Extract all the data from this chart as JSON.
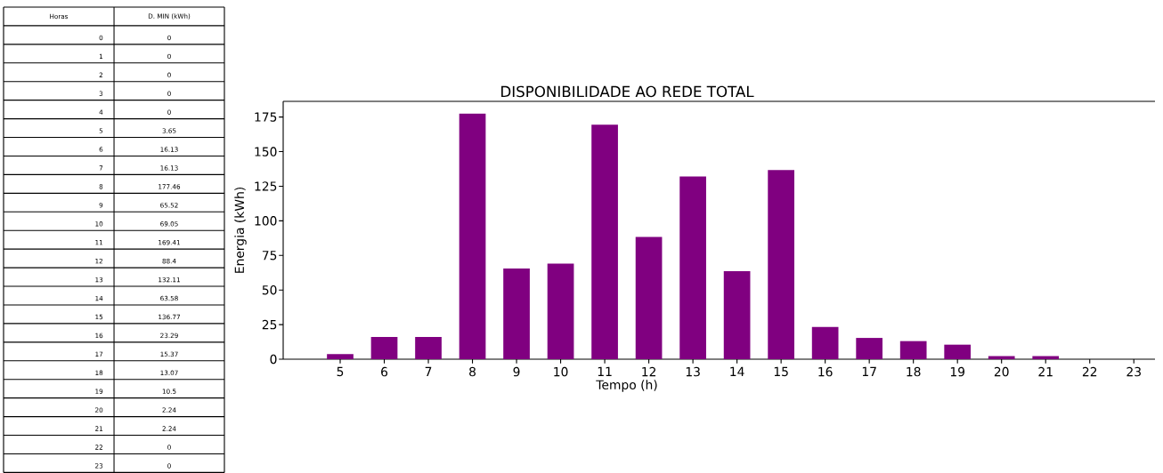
{
  "chart_data": [
    {
      "type": "heatmap",
      "ylabel": "Horas",
      "categories": [
        "D. MIN (kWh)"
      ],
      "y_categories": [
        "0",
        "1",
        "2",
        "3",
        "4",
        "5",
        "6",
        "7",
        "8",
        "9",
        "10",
        "11",
        "12",
        "13",
        "14",
        "15",
        "16",
        "17",
        "18",
        "19",
        "20",
        "21",
        "22",
        "23"
      ],
      "cells": [
        [
          0
        ],
        [
          0
        ],
        [
          0
        ],
        [
          0
        ],
        [
          0
        ],
        [
          3.65
        ],
        [
          16.13
        ],
        [
          16.13
        ],
        [
          177.46
        ],
        [
          65.52
        ],
        [
          69.05
        ],
        [
          169.41
        ],
        [
          88.4
        ],
        [
          132.11
        ],
        [
          63.58
        ],
        [
          136.77
        ],
        [
          23.29
        ],
        [
          15.37
        ],
        [
          13.07
        ],
        [
          10.5
        ],
        [
          2.24
        ],
        [
          2.24
        ],
        [
          0
        ],
        [
          0
        ]
      ],
      "data_labels": true
    },
    {
      "type": "bar",
      "title": "DISPONIBILIDADE AO REDE TOTAL",
      "xlabel": "Tempo (h)",
      "ylabel": "Energia (kWh)",
      "categories": [
        "5",
        "6",
        "7",
        "8",
        "9",
        "10",
        "11",
        "12",
        "13",
        "14",
        "15",
        "16",
        "17",
        "18",
        "19",
        "20",
        "21",
        "22",
        "23"
      ],
      "values": [
        3.65,
        16.13,
        16.13,
        177.46,
        65.52,
        69.05,
        169.41,
        88.4,
        132.11,
        63.58,
        136.77,
        23.29,
        15.37,
        13.07,
        10.5,
        2.24,
        2.24,
        0,
        0
      ],
      "color": "#800080",
      "ylim": [
        0,
        186.33
      ],
      "yticks": [
        0,
        25,
        50,
        75,
        100,
        125,
        150,
        175
      ]
    }
  ]
}
